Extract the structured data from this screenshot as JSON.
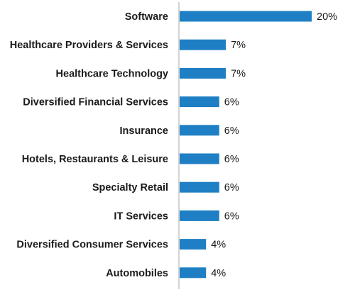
{
  "chart_data": {
    "type": "bar",
    "orientation": "horizontal",
    "categories": [
      "Software",
      "Healthcare Providers & Services",
      "Healthcare Technology",
      "Diversified Financial Services",
      "Insurance",
      "Hotels, Restaurants & Leisure",
      "Specialty Retail",
      "IT Services",
      "Diversified Consumer Services",
      "Automobiles"
    ],
    "values": [
      20,
      7,
      7,
      6,
      6,
      6,
      6,
      6,
      4,
      4
    ],
    "value_labels": [
      "20%",
      "7%",
      "7%",
      "6%",
      "6%",
      "6%",
      "6%",
      "6%",
      "4%",
      "4%"
    ],
    "unit": "%",
    "xlim": [
      0,
      20
    ],
    "grid": false,
    "legend": "none",
    "bar_color": "#1f7fc4",
    "axis_color": "#aaaaaa"
  }
}
